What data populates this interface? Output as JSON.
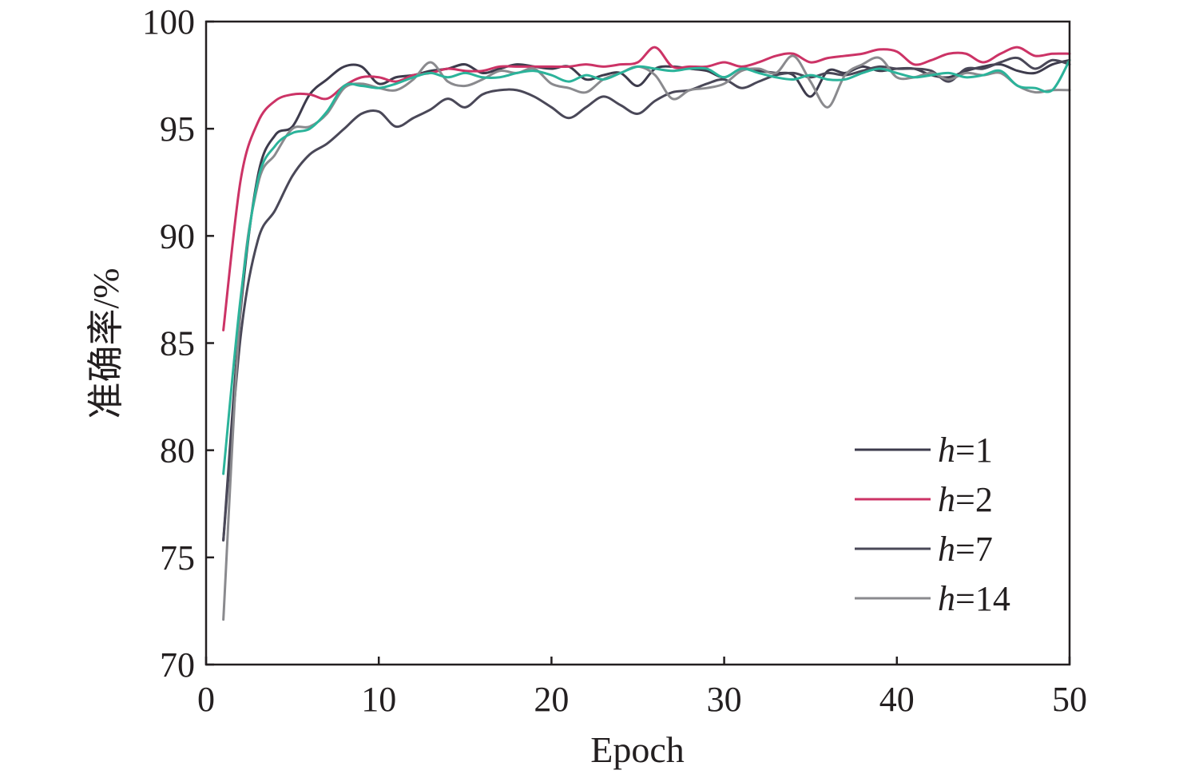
{
  "chart_data": {
    "type": "line",
    "xlabel": "Epoch",
    "ylabel": "准确率/%",
    "xlim": [
      0,
      50
    ],
    "ylim": [
      70,
      100
    ],
    "xticks": [
      "0",
      "10",
      "20",
      "30",
      "40",
      "50"
    ],
    "yticks": [
      "70",
      "75",
      "80",
      "85",
      "90",
      "95",
      "100"
    ],
    "legend_position": "lower-right",
    "grid": false,
    "x": [
      1,
      2,
      3,
      4,
      5,
      6,
      7,
      8,
      9,
      10,
      11,
      12,
      13,
      14,
      15,
      16,
      17,
      18,
      19,
      20,
      21,
      22,
      23,
      24,
      25,
      26,
      27,
      28,
      29,
      30,
      31,
      32,
      33,
      34,
      35,
      36,
      37,
      38,
      39,
      40,
      41,
      42,
      43,
      44,
      45,
      46,
      47,
      48,
      49,
      50
    ],
    "series": [
      {
        "name_prefix": "h",
        "name_value": "=1",
        "color": "#3d3b4c",
        "values": [
          75.8,
          86.5,
          92.8,
          94.7,
          95.1,
          96.6,
          97.3,
          97.9,
          97.9,
          97.1,
          97.4,
          97.5,
          97.7,
          97.8,
          98.0,
          97.6,
          97.8,
          98.0,
          97.9,
          97.8,
          97.9,
          97.3,
          97.5,
          97.6,
          97.0,
          97.8,
          97.9,
          97.8,
          97.7,
          97.4,
          97.8,
          97.7,
          97.6,
          97.5,
          96.5,
          97.7,
          97.6,
          97.9,
          97.7,
          97.8,
          97.8,
          97.5,
          97.4,
          97.7,
          97.9,
          98.0,
          97.7,
          97.6,
          98.0,
          98.2
        ]
      },
      {
        "name_prefix": "h",
        "name_value": "=2",
        "color": "#cc3366",
        "values": [
          85.6,
          92.6,
          95.3,
          96.3,
          96.6,
          96.6,
          96.4,
          97.0,
          97.4,
          97.4,
          97.2,
          97.5,
          97.6,
          97.8,
          97.7,
          97.7,
          97.9,
          97.9,
          97.9,
          97.9,
          97.9,
          98.0,
          97.9,
          98.0,
          98.1,
          98.8,
          97.9,
          97.9,
          97.9,
          98.1,
          97.9,
          98.1,
          98.4,
          98.5,
          98.1,
          98.3,
          98.4,
          98.5,
          98.7,
          98.6,
          98.0,
          98.2,
          98.5,
          98.5,
          98.1,
          98.5,
          98.8,
          98.4,
          98.5,
          98.5
        ]
      },
      {
        "name_prefix": "h",
        "name_value": "=7",
        "color": "#4a4858",
        "values": [
          75.8,
          85.3,
          89.8,
          91.2,
          92.8,
          93.8,
          94.3,
          95.0,
          95.7,
          95.8,
          95.1,
          95.5,
          95.9,
          96.4,
          96.0,
          96.6,
          96.8,
          96.8,
          96.5,
          96.0,
          95.5,
          96.0,
          96.5,
          96.1,
          95.7,
          96.3,
          96.7,
          96.8,
          97.1,
          97.3,
          96.9,
          97.2,
          97.5,
          97.6,
          97.4,
          97.6,
          97.5,
          97.7,
          97.9,
          97.8,
          97.8,
          97.7,
          97.2,
          97.8,
          97.8,
          98.1,
          98.3,
          97.8,
          98.2,
          98.0
        ]
      },
      {
        "name_prefix": "h",
        "name_value": "=14",
        "color": "#8a8a8e",
        "values": [
          72.1,
          86.7,
          92.4,
          93.8,
          95.0,
          95.1,
          95.7,
          96.9,
          97.1,
          96.9,
          96.8,
          97.3,
          98.1,
          97.2,
          97.0,
          97.3,
          97.7,
          97.6,
          97.8,
          97.1,
          96.9,
          96.7,
          97.3,
          97.6,
          97.9,
          97.5,
          96.4,
          96.8,
          96.9,
          97.1,
          97.7,
          97.8,
          97.6,
          98.4,
          97.2,
          96.0,
          97.5,
          98.0,
          98.3,
          97.4,
          97.4,
          97.6,
          97.3,
          97.6,
          97.5,
          97.6,
          97.0,
          96.7,
          96.8,
          96.8
        ]
      },
      {
        "name_prefix": "",
        "name_value": "",
        "color": "#2bb39a",
        "values": [
          78.9,
          87.1,
          92.6,
          94.2,
          94.8,
          95.0,
          95.8,
          97.0,
          97.0,
          96.9,
          97.1,
          97.4,
          97.6,
          97.4,
          97.6,
          97.4,
          97.4,
          97.6,
          97.7,
          97.5,
          97.2,
          97.5,
          97.3,
          97.6,
          97.9,
          97.8,
          97.7,
          97.8,
          97.8,
          97.4,
          97.8,
          97.6,
          97.4,
          97.3,
          97.5,
          97.3,
          97.3,
          97.6,
          97.8,
          97.6,
          97.4,
          97.5,
          97.6,
          97.4,
          97.5,
          97.7,
          97.0,
          96.9,
          96.8,
          98.2
        ]
      }
    ],
    "legend": [
      {
        "prefix": "h",
        "value": "=1",
        "color": "#3d3b4c"
      },
      {
        "prefix": "h",
        "value": "=2",
        "color": "#cc3366"
      },
      {
        "prefix": "h",
        "value": "=7",
        "color": "#4a4858"
      },
      {
        "prefix": "h",
        "value": "=14",
        "color": "#8a8a8e"
      }
    ]
  }
}
